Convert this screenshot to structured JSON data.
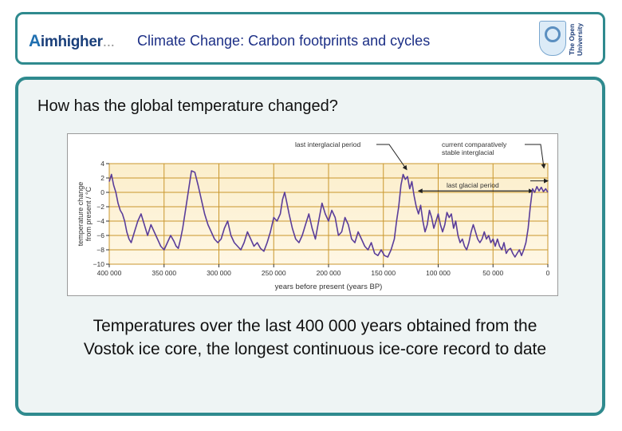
{
  "header": {
    "logo_prefix": "A",
    "logo_bold": "imhigher",
    "logo_suffix": "...",
    "title": "Climate Change: Carbon footprints and cycles",
    "ou_logo_text": "The Open University"
  },
  "question": "How has the global temperature changed?",
  "caption": "Temperatures over the last 400 000 years obtained from the Vostok ice core, the longest continuous ice-core record to date",
  "chart_data": {
    "type": "line",
    "title": "",
    "xlabel": "years before present (years BP)",
    "ylabel": "temperature change from present / °C",
    "xlim": [
      400000,
      0
    ],
    "ylim": [
      -10,
      4
    ],
    "x_ticks": [
      400000,
      350000,
      300000,
      250000,
      200000,
      150000,
      100000,
      50000,
      0
    ],
    "x_tick_labels": [
      "400 000",
      "350 000",
      "300 000",
      "250 000",
      "200 000",
      "150 000",
      "100 000",
      "50 000",
      "0"
    ],
    "y_ticks": [
      4,
      2,
      0,
      -2,
      -4,
      -6,
      -8,
      -10
    ],
    "y_tick_labels": [
      "4",
      "2",
      "0",
      "−2",
      "−4",
      "−6",
      "−8",
      "−10"
    ],
    "grid": true,
    "annotations": [
      {
        "text": "last interglacial period",
        "x": 128000,
        "y": 2.5
      },
      {
        "text": "current comparatively stable interglacial",
        "x": 5000,
        "y": 2.5
      },
      {
        "text": "last glacial period",
        "x": 60000,
        "y": 0.2
      }
    ],
    "series": [
      {
        "name": "Vostok temperature change",
        "color": "#5a3d9a",
        "x": [
          400000,
          398000,
          396000,
          394000,
          392000,
          390000,
          388000,
          386000,
          384000,
          382000,
          380000,
          377000,
          374000,
          371000,
          368000,
          365000,
          362000,
          359000,
          356000,
          353000,
          350000,
          347000,
          344000,
          341000,
          339000,
          337000,
          335000,
          333000,
          331000,
          328000,
          325000,
          322000,
          319000,
          316000,
          313000,
          310000,
          307000,
          304000,
          301000,
          298000,
          295000,
          292000,
          289000,
          286000,
          283000,
          280000,
          277000,
          274000,
          271000,
          268000,
          265000,
          262000,
          259000,
          256000,
          253000,
          250000,
          247000,
          244000,
          242000,
          240000,
          238000,
          236000,
          233000,
          230000,
          227000,
          224000,
          221000,
          218000,
          215000,
          212000,
          209000,
          206000,
          203000,
          200000,
          197000,
          194000,
          191000,
          188000,
          185000,
          182000,
          179000,
          176000,
          173000,
          170000,
          167000,
          164000,
          161000,
          158000,
          155000,
          152000,
          149000,
          146000,
          143000,
          140000,
          138000,
          136000,
          134000,
          132000,
          130000,
          128000,
          126000,
          124000,
          122000,
          120000,
          118000,
          116000,
          114000,
          112000,
          110000,
          108000,
          106000,
          104000,
          102000,
          100000,
          98000,
          96000,
          94000,
          92000,
          90000,
          88000,
          86000,
          84000,
          82000,
          80000,
          78000,
          76000,
          74000,
          72000,
          70000,
          68000,
          66000,
          64000,
          62000,
          60000,
          58000,
          56000,
          54000,
          52000,
          50000,
          48000,
          46000,
          44000,
          42000,
          40000,
          38000,
          36000,
          34000,
          32000,
          30000,
          28000,
          26000,
          24000,
          22000,
          20000,
          18000,
          16000,
          14000,
          12000,
          10000,
          8000,
          6000,
          4000,
          2000,
          0
        ],
        "y": [
          1.5,
          2.5,
          1.0,
          0.0,
          -1.5,
          -2.5,
          -3.0,
          -4.0,
          -5.5,
          -6.5,
          -7.0,
          -5.5,
          -4.0,
          -3.0,
          -4.5,
          -6.0,
          -4.5,
          -5.5,
          -6.5,
          -7.5,
          -8.0,
          -7.0,
          -6.0,
          -6.8,
          -7.5,
          -7.8,
          -6.5,
          -5.0,
          -3.0,
          0.0,
          3.0,
          2.8,
          1.0,
          -1.0,
          -3.0,
          -4.5,
          -5.5,
          -6.5,
          -7.0,
          -6.5,
          -5.0,
          -4.0,
          -6.0,
          -7.0,
          -7.5,
          -8.0,
          -7.0,
          -5.5,
          -6.5,
          -7.5,
          -7.0,
          -7.8,
          -8.2,
          -7.0,
          -5.5,
          -3.5,
          -4.0,
          -3.0,
          -1.0,
          0.0,
          -1.5,
          -3.0,
          -5.0,
          -6.5,
          -7.0,
          -6.0,
          -4.5,
          -3.0,
          -5.0,
          -6.5,
          -4.0,
          -1.5,
          -3.0,
          -4.0,
          -2.5,
          -3.5,
          -6.0,
          -5.5,
          -3.5,
          -4.5,
          -6.5,
          -7.0,
          -5.5,
          -6.5,
          -7.5,
          -8.0,
          -7.0,
          -8.5,
          -8.8,
          -8.0,
          -8.8,
          -9.0,
          -8.0,
          -6.5,
          -4.0,
          -2.0,
          1.0,
          2.5,
          1.8,
          2.2,
          0.5,
          1.5,
          -0.5,
          -2.0,
          -3.0,
          -1.8,
          -4.0,
          -5.5,
          -4.5,
          -2.5,
          -3.5,
          -5.0,
          -4.0,
          -3.0,
          -4.5,
          -5.5,
          -4.5,
          -2.8,
          -3.5,
          -3.0,
          -5.0,
          -4.0,
          -6.0,
          -7.0,
          -6.5,
          -7.5,
          -8.0,
          -7.0,
          -5.5,
          -4.5,
          -5.5,
          -6.5,
          -7.0,
          -6.5,
          -5.5,
          -6.5,
          -6.0,
          -7.0,
          -6.5,
          -7.5,
          -6.5,
          -7.5,
          -8.0,
          -7.0,
          -8.5,
          -8.0,
          -7.8,
          -8.5,
          -9.0,
          -8.5,
          -8.0,
          -8.8,
          -8.0,
          -7.0,
          -5.0,
          -2.0,
          0.5,
          0.0,
          0.8,
          0.2,
          0.7,
          0.1,
          0.5,
          0.0
        ]
      }
    ]
  }
}
